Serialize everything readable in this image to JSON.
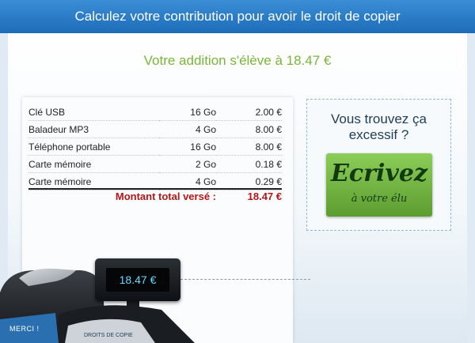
{
  "header": {
    "title": "Calculez votre contribution pour avoir le droit de copier"
  },
  "summary": {
    "text": "Votre addition s'élève à 18.47 €"
  },
  "receipt": {
    "items": [
      {
        "name": "Clé USB",
        "size": "16 Go",
        "price": "2.00 €"
      },
      {
        "name": "Baladeur MP3",
        "size": "4 Go",
        "price": "8.00 €"
      },
      {
        "name": "Téléphone portable",
        "size": "16 Go",
        "price": "8.00 €"
      },
      {
        "name": "Carte mémoire",
        "size": "2 Go",
        "price": "0.18 €"
      },
      {
        "name": "Carte mémoire",
        "size": "4 Go",
        "price": "0.29 €"
      }
    ],
    "total_label": "Montant total versé :",
    "total_value": "18.47 €"
  },
  "sidebar": {
    "question": "Vous trouvez ça excessif ?",
    "button_main": "Ecrivez",
    "button_sub": "à votre élu"
  },
  "register": {
    "display": "18.47 €",
    "label": "MERCI !",
    "badge": "DROITS DE COPIE"
  },
  "colors": {
    "header": "#2a7fcf",
    "summary": "#7ab53a",
    "total": "#b31616",
    "button": "#6eae3c",
    "display_text": "#69d8ff"
  }
}
